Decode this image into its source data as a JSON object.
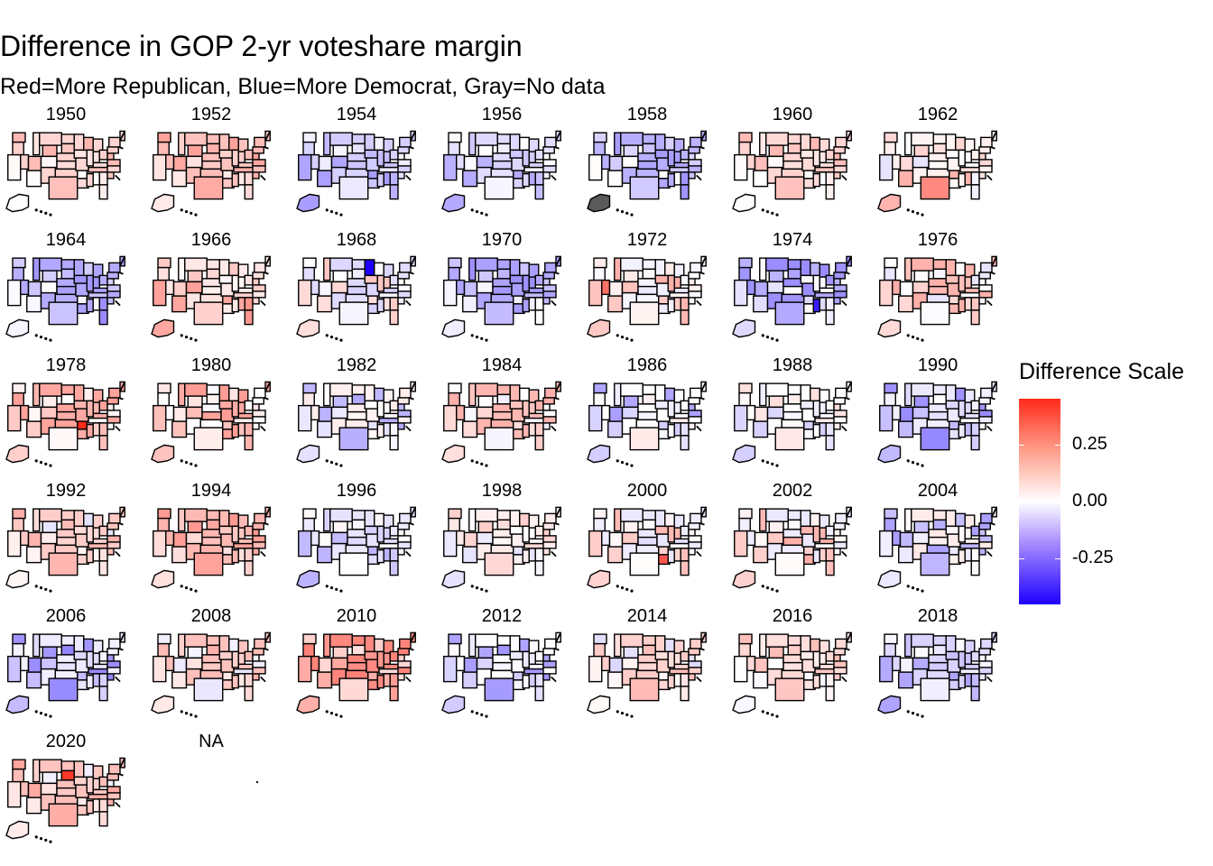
{
  "title": "Difference in GOP 2-yr voteshare margin",
  "subtitle": "Red=More Republican, Blue=More Democrat, Gray=No data",
  "legend": {
    "title": "Difference Scale",
    "scale_min": -0.45,
    "scale_max": 0.45,
    "ticks": [
      {
        "value": 0.25,
        "label": "0.25"
      },
      {
        "value": 0.0,
        "label": "0.00"
      },
      {
        "value": -0.25,
        "label": "-0.25"
      }
    ],
    "colors": {
      "high": "#ff2a1a",
      "mid": "#ffffff",
      "low": "#1e00ff",
      "no_data": "#5a5a5a"
    }
  },
  "panels": [
    {
      "label": "1950",
      "tint": 0.06
    },
    {
      "label": "1952",
      "tint": 0.12
    },
    {
      "label": "1954",
      "tint": -0.08
    },
    {
      "label": "1956",
      "tint": -0.04
    },
    {
      "label": "1958",
      "tint": -0.1
    },
    {
      "label": "1960",
      "tint": 0.1
    },
    {
      "label": "1962",
      "tint": 0.06
    },
    {
      "label": "1964",
      "tint": -0.1
    },
    {
      "label": "1966",
      "tint": 0.12
    },
    {
      "label": "1968",
      "tint": 0.02
    },
    {
      "label": "1970",
      "tint": -0.1
    },
    {
      "label": "1972",
      "tint": 0.06
    },
    {
      "label": "1974",
      "tint": -0.1
    },
    {
      "label": "1976",
      "tint": 0.06
    },
    {
      "label": "1978",
      "tint": 0.1
    },
    {
      "label": "1980",
      "tint": 0.1
    },
    {
      "label": "1982",
      "tint": -0.06
    },
    {
      "label": "1984",
      "tint": 0.08
    },
    {
      "label": "1986",
      "tint": -0.06
    },
    {
      "label": "1988",
      "tint": -0.04
    },
    {
      "label": "1990",
      "tint": -0.1
    },
    {
      "label": "1992",
      "tint": 0.06
    },
    {
      "label": "1994",
      "tint": 0.12
    },
    {
      "label": "1996",
      "tint": -0.06
    },
    {
      "label": "1998",
      "tint": 0.04
    },
    {
      "label": "2000",
      "tint": 0.04
    },
    {
      "label": "2002",
      "tint": 0.06
    },
    {
      "label": "2004",
      "tint": -0.06
    },
    {
      "label": "2006",
      "tint": -0.12
    },
    {
      "label": "2008",
      "tint": 0.06
    },
    {
      "label": "2010",
      "tint": 0.16
    },
    {
      "label": "2012",
      "tint": -0.08
    },
    {
      "label": "2014",
      "tint": 0.04
    },
    {
      "label": "2016",
      "tint": 0.03
    },
    {
      "label": "2018",
      "tint": -0.1
    },
    {
      "label": "2020",
      "tint": 0.08
    },
    {
      "label": "NA",
      "tint": null
    }
  ],
  "highlights": {
    "1958": {
      "state": "AK",
      "value": null
    },
    "1962": {
      "state": "TX",
      "value": 0.25
    },
    "1968": {
      "state": "MN",
      "value": -0.45
    },
    "1972": {
      "state": "NV",
      "value": 0.3
    },
    "1974": {
      "state": "MS",
      "value": -0.4
    },
    "1978": {
      "state": "AR",
      "value": 0.45
    },
    "2000": {
      "state": "LA",
      "value": 0.35
    },
    "2020": {
      "state": "SD",
      "value": 0.42
    }
  }
}
